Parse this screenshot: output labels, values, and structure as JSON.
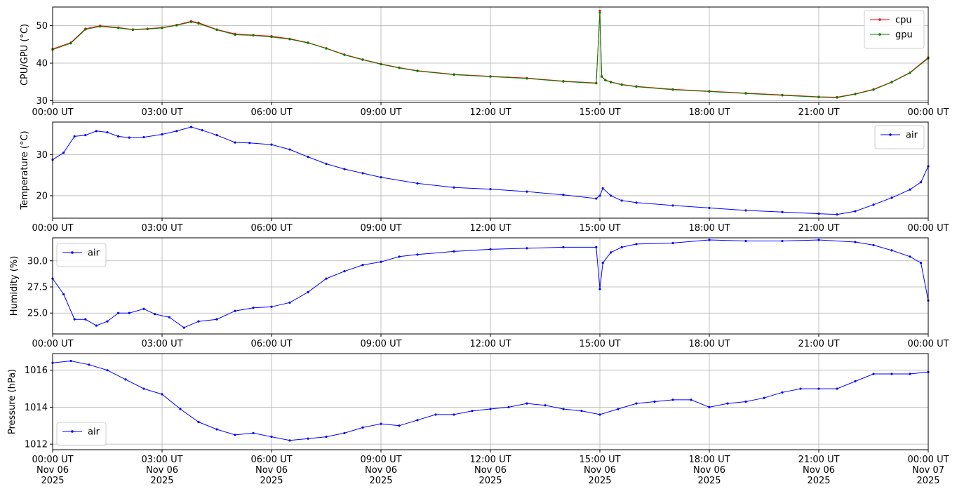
{
  "chart_data": [
    {
      "type": "line",
      "ylabel": "CPU/GPU (°C)",
      "xlim": [
        "00:00 UT",
        "00:00 UT"
      ],
      "x_hours": [
        0,
        0.5,
        0.9,
        1.3,
        1.8,
        2.2,
        2.6,
        3.0,
        3.4,
        3.8,
        4.0,
        4.5,
        5.0,
        5.5,
        6.0,
        6.5,
        7.0,
        7.5,
        8.0,
        8.5,
        9.0,
        9.5,
        10.0,
        11.0,
        12.0,
        13.0,
        14.0,
        14.9,
        15.0,
        15.05,
        15.15,
        15.3,
        15.6,
        16.0,
        17.0,
        18.0,
        19.0,
        20.0,
        21.0,
        21.5,
        22.0,
        22.5,
        23.0,
        23.5,
        24.0
      ],
      "ylim": [
        29.5,
        55
      ],
      "yticks": [
        30,
        40,
        50
      ],
      "legend": "top-right",
      "series": [
        {
          "name": "cpu",
          "color": "#ff0000",
          "values": [
            43.8,
            45.5,
            49.2,
            50.0,
            49.5,
            49.0,
            49.2,
            49.5,
            50.2,
            51.2,
            50.8,
            49.0,
            47.8,
            47.5,
            47.2,
            46.5,
            45.5,
            44.0,
            42.3,
            41.0,
            39.8,
            38.8,
            38.0,
            37.0,
            36.5,
            36.0,
            35.2,
            34.7,
            54.0,
            36.5,
            35.5,
            35.0,
            34.3,
            33.8,
            33.0,
            32.5,
            32.0,
            31.5,
            31.0,
            30.9,
            31.8,
            33.0,
            35.0,
            37.5,
            41.5
          ]
        },
        {
          "name": "gpu",
          "color": "#008000",
          "values": [
            43.6,
            45.3,
            49.0,
            49.8,
            49.4,
            48.9,
            49.1,
            49.4,
            50.1,
            51.0,
            50.6,
            48.9,
            47.6,
            47.4,
            47.0,
            46.4,
            45.4,
            43.9,
            42.2,
            40.9,
            39.7,
            38.7,
            37.9,
            36.9,
            36.4,
            35.9,
            35.1,
            34.6,
            53.5,
            36.4,
            35.4,
            34.9,
            34.2,
            33.7,
            32.9,
            32.4,
            31.9,
            31.4,
            30.9,
            30.8,
            31.7,
            32.9,
            34.9,
            37.4,
            41.3
          ]
        }
      ]
    },
    {
      "type": "line",
      "ylabel": "Temperature (°C)",
      "x_hours": [
        0,
        0.3,
        0.6,
        0.9,
        1.2,
        1.5,
        1.8,
        2.1,
        2.5,
        3.0,
        3.4,
        3.8,
        4.1,
        4.5,
        5.0,
        5.4,
        6.0,
        6.5,
        7.0,
        7.5,
        8.0,
        8.5,
        9.0,
        10.0,
        11.0,
        12.0,
        13.0,
        14.0,
        14.9,
        15.0,
        15.08,
        15.3,
        15.6,
        16.0,
        17.0,
        18.0,
        19.0,
        20.0,
        21.0,
        21.5,
        22.0,
        22.5,
        23.0,
        23.5,
        23.8,
        24.0
      ],
      "ylim": [
        14.5,
        38
      ],
      "yticks": [
        20,
        30
      ],
      "legend": "top-right",
      "series": [
        {
          "name": "air",
          "color": "#0000ff",
          "values": [
            28.8,
            30.5,
            34.5,
            34.8,
            35.8,
            35.5,
            34.5,
            34.2,
            34.3,
            35.0,
            35.8,
            36.8,
            36.0,
            34.8,
            33.0,
            32.9,
            32.5,
            31.3,
            29.5,
            27.8,
            26.5,
            25.5,
            24.5,
            23.0,
            22.0,
            21.6,
            21.0,
            20.2,
            19.3,
            20.0,
            21.8,
            20.0,
            18.8,
            18.3,
            17.6,
            17.0,
            16.4,
            16.0,
            15.6,
            15.4,
            16.2,
            17.8,
            19.5,
            21.5,
            23.3,
            27.2
          ]
        }
      ]
    },
    {
      "type": "line",
      "ylabel": "Humidity (%)",
      "x_hours": [
        0,
        0.3,
        0.6,
        0.9,
        1.2,
        1.5,
        1.8,
        2.1,
        2.5,
        2.8,
        3.2,
        3.6,
        4.0,
        4.5,
        5.0,
        5.5,
        6.0,
        6.5,
        7.0,
        7.5,
        8.0,
        8.5,
        9.0,
        9.5,
        10.0,
        11.0,
        12.0,
        13.0,
        14.0,
        14.9,
        15.0,
        15.08,
        15.3,
        15.6,
        16.0,
        17.0,
        18.0,
        19.0,
        20.0,
        21.0,
        22.0,
        22.5,
        23.0,
        23.5,
        23.8,
        24.0
      ],
      "ylim": [
        23.0,
        32.2
      ],
      "yticks": [
        25.0,
        27.5,
        30.0
      ],
      "ytick_labels": [
        "25.0",
        "27.5",
        "30.0"
      ],
      "legend": "top-left",
      "series": [
        {
          "name": "air",
          "color": "#0000ff",
          "values": [
            28.3,
            26.8,
            24.4,
            24.4,
            23.8,
            24.2,
            25.0,
            25.0,
            25.4,
            24.9,
            24.6,
            23.6,
            24.2,
            24.4,
            25.2,
            25.5,
            25.6,
            26.0,
            27.0,
            28.3,
            29.0,
            29.6,
            29.9,
            30.4,
            30.6,
            30.9,
            31.1,
            31.2,
            31.3,
            31.3,
            27.3,
            29.8,
            30.8,
            31.3,
            31.6,
            31.7,
            32.0,
            31.9,
            31.9,
            32.0,
            31.8,
            31.5,
            31.0,
            30.4,
            29.8,
            26.2
          ]
        }
      ]
    },
    {
      "type": "line",
      "ylabel": "Pressure (hPa)",
      "x_hours": [
        0,
        0.5,
        1.0,
        1.5,
        2.0,
        2.5,
        3.0,
        3.5,
        4.0,
        4.5,
        5.0,
        5.5,
        6.0,
        6.5,
        7.0,
        7.5,
        8.0,
        8.5,
        9.0,
        9.5,
        10.0,
        10.5,
        11.0,
        11.5,
        12.0,
        12.5,
        13.0,
        13.5,
        14.0,
        14.5,
        15.0,
        15.5,
        16.0,
        16.5,
        17.0,
        17.5,
        18.0,
        18.5,
        19.0,
        19.5,
        20.0,
        20.5,
        21.0,
        21.5,
        22.0,
        22.5,
        23.0,
        23.5,
        24.0
      ],
      "ylim": [
        1011.7,
        1016.9
      ],
      "yticks": [
        1012,
        1014,
        1016
      ],
      "legend": "bottom-left",
      "x_tick_labels": [
        [
          "00:00 UT",
          "Nov 06",
          "2025"
        ],
        [
          "03:00 UT",
          "Nov 06",
          "2025"
        ],
        [
          "06:00 UT",
          "Nov 06",
          "2025"
        ],
        [
          "09:00 UT",
          "Nov 06",
          "2025"
        ],
        [
          "12:00 UT",
          "Nov 06",
          "2025"
        ],
        [
          "15:00 UT",
          "Nov 06",
          "2025"
        ],
        [
          "18:00 UT",
          "Nov 06",
          "2025"
        ],
        [
          "21:00 UT",
          "Nov 06",
          "2025"
        ],
        [
          "00:00 UT",
          "Nov 07",
          "2025"
        ]
      ],
      "series": [
        {
          "name": "air",
          "color": "#0000ff",
          "values": [
            1016.4,
            1016.5,
            1016.3,
            1016.0,
            1015.5,
            1015.0,
            1014.7,
            1013.9,
            1013.2,
            1012.8,
            1012.5,
            1012.6,
            1012.4,
            1012.2,
            1012.3,
            1012.4,
            1012.6,
            1012.9,
            1013.1,
            1013.0,
            1013.3,
            1013.6,
            1013.6,
            1013.8,
            1013.9,
            1014.0,
            1014.2,
            1014.1,
            1013.9,
            1013.8,
            1013.6,
            1013.9,
            1014.2,
            1014.3,
            1014.4,
            1014.4,
            1014.0,
            1014.2,
            1014.3,
            1014.5,
            1014.8,
            1015.0,
            1015.0,
            1015.0,
            1015.4,
            1015.8,
            1015.8,
            1015.8,
            1015.9
          ]
        }
      ]
    }
  ],
  "x_tick_labels_short": [
    "00:00 UT",
    "03:00 UT",
    "06:00 UT",
    "09:00 UT",
    "12:00 UT",
    "15:00 UT",
    "18:00 UT",
    "21:00 UT",
    "00:00 UT"
  ]
}
